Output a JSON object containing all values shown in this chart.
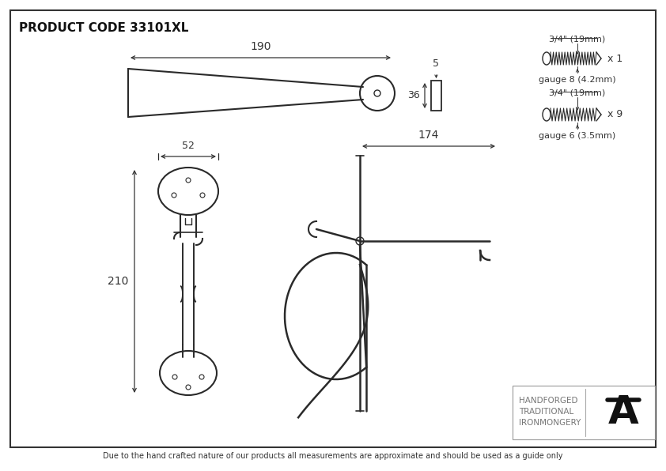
{
  "title": "PRODUCT CODE 33101XL",
  "footer": "Due to the hand crafted nature of our products all measurements are approximate and should be used as a guide only",
  "brand_line1": "HANDFORGED",
  "brand_line2": "TRADITIONAL",
  "brand_line3": "IRONMONGERY",
  "bg_color": "#ffffff",
  "border_color": "#333333",
  "line_color": "#2a2a2a",
  "dim_color": "#333333",
  "screw1_label": "3/4\" (19mm)",
  "screw1_count": "x 1",
  "screw1_gauge": "gauge 8 (4.2mm)",
  "screw2_label": "3/4\" (19mm)",
  "screw2_count": "x 9",
  "screw2_gauge": "gauge 6 (3.5mm)",
  "dim_190": "190",
  "dim_5": "5",
  "dim_36": "36",
  "dim_52": "52",
  "dim_174": "174",
  "dim_210": "210"
}
